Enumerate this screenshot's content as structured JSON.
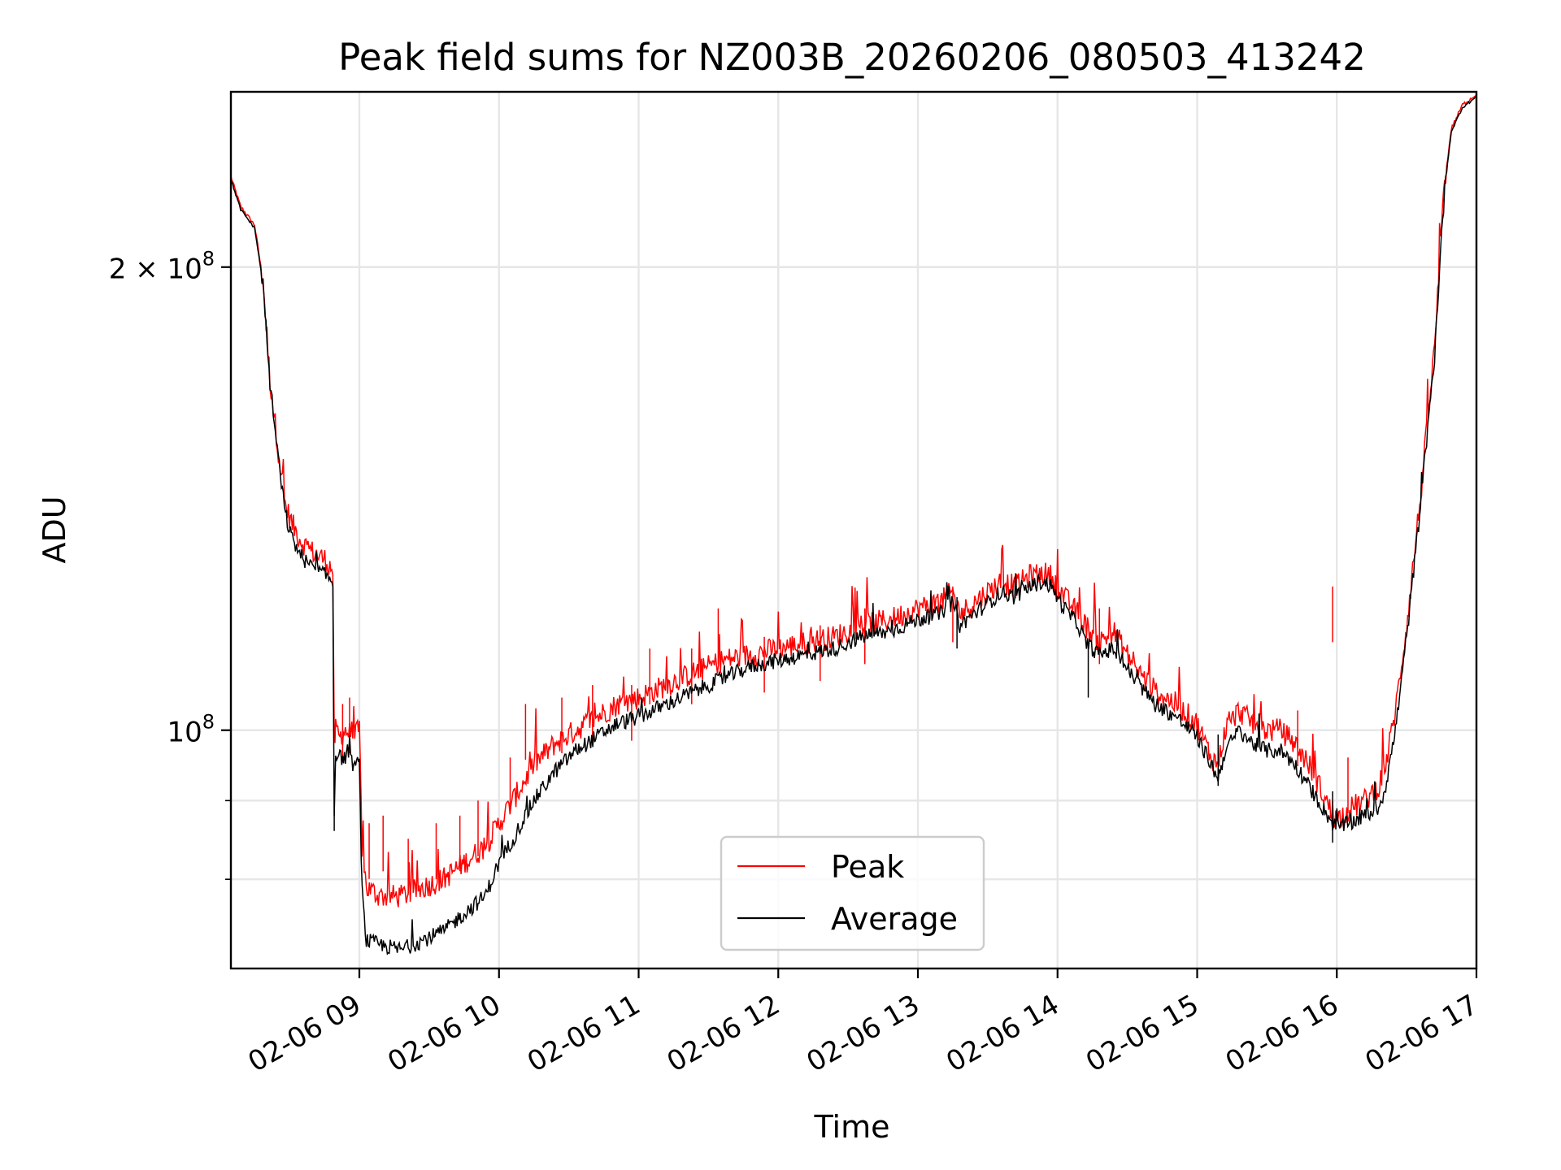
{
  "chart_data": {
    "type": "line",
    "title": "Peak field sums for NZ003B_20260206_080503_413242",
    "xlabel": "Time",
    "ylabel": "ADU",
    "yscale": "log",
    "xlim": [
      8.08,
      17.0
    ],
    "ylim": [
      70000000,
      260000000
    ],
    "x_ticks": [
      9,
      10,
      11,
      12,
      13,
      14,
      15,
      16,
      17
    ],
    "x_tick_labels": [
      "02-06 09",
      "02-06 10",
      "02-06 11",
      "02-06 12",
      "02-06 13",
      "02-06 14",
      "02-06 15",
      "02-06 16",
      "02-06 17"
    ],
    "y_major_ticks": [
      100000000,
      200000000
    ],
    "y_tick_labels": {
      "base": "10",
      "exp_1e8": "8",
      "mult_2e8": "2 × 10",
      "exp_2e8": "8"
    },
    "y_minor_ticks": [
      80000000,
      90000000
    ],
    "grid": true,
    "legend_position": "lower-center",
    "colors": {
      "peak": "#ff0000",
      "average": "#000000",
      "grid": "#e6e6e6"
    },
    "series": [
      {
        "name": "Average",
        "key": "average",
        "x": [
          8.08,
          8.15,
          8.25,
          8.31,
          8.36,
          8.42,
          8.47,
          8.52,
          8.58,
          8.64,
          8.7,
          8.76,
          8.81,
          8.82,
          8.83,
          8.86,
          8.9,
          8.96,
          9.0,
          9.02,
          9.05,
          9.15,
          9.3,
          9.45,
          9.6,
          9.75,
          9.9,
          10.0,
          10.1,
          10.25,
          10.4,
          10.55,
          10.7,
          10.85,
          11.0,
          11.2,
          11.4,
          11.6,
          11.8,
          12.0,
          12.2,
          12.4,
          12.6,
          12.8,
          13.0,
          13.15,
          13.25,
          13.3,
          13.4,
          13.5,
          13.6,
          13.7,
          13.8,
          13.9,
          13.95,
          14.05,
          14.15,
          14.2,
          14.3,
          14.4,
          14.55,
          14.7,
          14.85,
          15.0,
          15.1,
          15.15,
          15.2,
          15.3,
          15.4,
          15.5,
          15.6,
          15.7,
          15.8,
          15.9,
          15.97,
          16.0,
          16.1,
          16.2,
          16.3,
          16.35,
          16.42,
          16.5,
          16.6,
          16.7,
          16.75,
          16.78,
          16.82,
          16.9,
          17.0
        ],
        "y": [
          228000000,
          218000000,
          212000000,
          195000000,
          168000000,
          150000000,
          138000000,
          133000000,
          130000000,
          128000000,
          127000000,
          126000000,
          125000000,
          88000000,
          97000000,
          96000000,
          96000000,
          95000000,
          95000000,
          78000000,
          73000000,
          72500000,
          72000000,
          73000000,
          74000000,
          76000000,
          78000000,
          82000000,
          85000000,
          90000000,
          94000000,
          97000000,
          99000000,
          101000000,
          102000000,
          104000000,
          106000000,
          108000000,
          110000000,
          111000000,
          112000000,
          113000000,
          115000000,
          116000000,
          118000000,
          119000000,
          121000000,
          117000000,
          119000000,
          121000000,
          123000000,
          122000000,
          124000000,
          125000000,
          124000000,
          120000000,
          117000000,
          114000000,
          112000000,
          113000000,
          108000000,
          104000000,
          102000000,
          99000000,
          95000000,
          93000000,
          97000000,
          100000000,
          98000000,
          97000000,
          97000000,
          95000000,
          92000000,
          89000000,
          87000000,
          86500000,
          87000000,
          88000000,
          89000000,
          92000000,
          100000000,
          115000000,
          140000000,
          175000000,
          210000000,
          228000000,
          245000000,
          254000000,
          258000000
        ]
      },
      {
        "name": "Peak",
        "key": "peak",
        "x": [
          8.08,
          8.15,
          8.25,
          8.31,
          8.36,
          8.42,
          8.47,
          8.52,
          8.58,
          8.64,
          8.7,
          8.76,
          8.81,
          8.82,
          8.83,
          8.86,
          8.9,
          8.96,
          9.0,
          9.02,
          9.05,
          9.15,
          9.3,
          9.45,
          9.6,
          9.75,
          9.9,
          10.0,
          10.1,
          10.25,
          10.4,
          10.55,
          10.7,
          10.85,
          11.0,
          11.2,
          11.4,
          11.6,
          11.8,
          12.0,
          12.2,
          12.4,
          12.6,
          12.8,
          13.0,
          13.15,
          13.25,
          13.3,
          13.4,
          13.5,
          13.6,
          13.7,
          13.8,
          13.9,
          13.95,
          14.05,
          14.15,
          14.2,
          14.3,
          14.4,
          14.55,
          14.7,
          14.85,
          15.0,
          15.1,
          15.15,
          15.2,
          15.3,
          15.4,
          15.5,
          15.6,
          15.7,
          15.8,
          15.9,
          15.97,
          16.0,
          16.1,
          16.2,
          16.3,
          16.35,
          16.42,
          16.5,
          16.6,
          16.7,
          16.75,
          16.78,
          16.82,
          16.9,
          17.0
        ],
        "y": [
          229000000,
          219000000,
          213000000,
          196000000,
          169000000,
          152000000,
          140000000,
          136000000,
          133000000,
          131000000,
          130000000,
          129000000,
          127000000,
          98000000,
          100000000,
          99000000,
          100000000,
          99000000,
          100000000,
          84000000,
          79000000,
          78000000,
          78000000,
          79000000,
          80000000,
          82000000,
          84000000,
          87000000,
          90000000,
          95000000,
          98000000,
          100000000,
          102000000,
          104000000,
          105000000,
          107000000,
          109000000,
          111000000,
          112000000,
          113000000,
          114000000,
          115000000,
          117000000,
          118000000,
          120000000,
          121000000,
          123000000,
          119000000,
          121000000,
          123000000,
          125000000,
          124000000,
          126000000,
          126500000,
          126000000,
          122000000,
          119000000,
          117000000,
          114000000,
          116000000,
          110000000,
          106000000,
          104000000,
          101000000,
          96000000,
          95000000,
          100000000,
          103000000,
          101000000,
          100000000,
          100000000,
          98000000,
          95000000,
          91000000,
          88000000,
          87500000,
          89000000,
          90000000,
          92000000,
          95000000,
          103000000,
          117000000,
          142000000,
          177000000,
          212000000,
          230000000,
          246000000,
          255000000,
          259000000
        ]
      }
    ],
    "peak_spikes": [
      {
        "x": 8.88,
        "y": 104000000
      },
      {
        "x": 8.93,
        "y": 105000000
      },
      {
        "x": 9.07,
        "y": 87000000
      },
      {
        "x": 9.17,
        "y": 88000000
      },
      {
        "x": 9.35,
        "y": 85000000
      },
      {
        "x": 9.55,
        "y": 87000000
      },
      {
        "x": 9.72,
        "y": 88000000
      },
      {
        "x": 9.85,
        "y": 90000000
      },
      {
        "x": 10.08,
        "y": 96000000
      },
      {
        "x": 10.19,
        "y": 104000000
      },
      {
        "x": 10.45,
        "y": 105000000
      },
      {
        "x": 10.67,
        "y": 107000000
      },
      {
        "x": 10.95,
        "y": 107000000
      },
      {
        "x": 11.08,
        "y": 113000000
      },
      {
        "x": 11.38,
        "y": 113000000
      },
      {
        "x": 11.57,
        "y": 120000000
      },
      {
        "x": 11.9,
        "y": 115000000
      },
      {
        "x": 12.3,
        "y": 117000000
      },
      {
        "x": 12.62,
        "y": 120000000
      },
      {
        "x": 13.25,
        "y": 124000000
      },
      {
        "x": 14.3,
        "y": 120000000
      },
      {
        "x": 15.72,
        "y": 103000000
      },
      {
        "x": 15.97,
        "y": 124000000
      },
      {
        "x": 16.08,
        "y": 96000000
      }
    ],
    "average_dips": [
      {
        "x": 8.82,
        "y": 86000000
      },
      {
        "x": 13.28,
        "y": 113000000
      },
      {
        "x": 14.22,
        "y": 105000000
      },
      {
        "x": 15.15,
        "y": 92000000
      },
      {
        "x": 15.97,
        "y": 84500000
      }
    ]
  }
}
